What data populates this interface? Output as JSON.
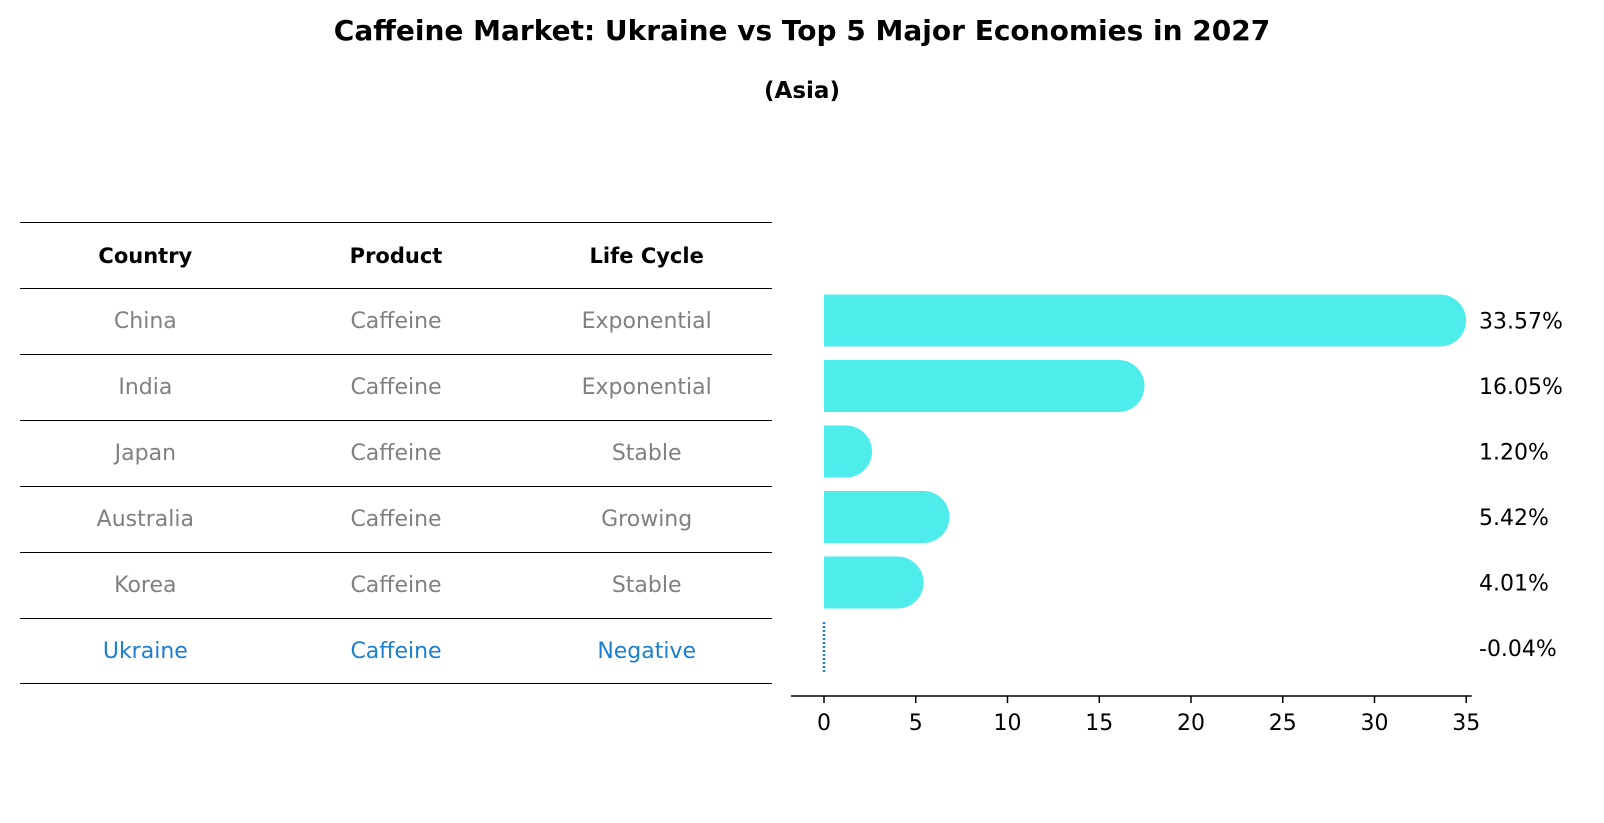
{
  "header": {
    "title": "Caffeine Market: Ukraine vs Top 5 Major Economies in 2027",
    "subtitle": "(Asia)"
  },
  "table": {
    "columns": [
      "Country",
      "Product",
      "Life Cycle"
    ],
    "rows": [
      {
        "country": "China",
        "product": "Caffeine",
        "life_cycle": "Exponential"
      },
      {
        "country": "India",
        "product": "Caffeine",
        "life_cycle": "Exponential"
      },
      {
        "country": "Japan",
        "product": "Caffeine",
        "life_cycle": "Stable"
      },
      {
        "country": "Australia",
        "product": "Caffeine",
        "life_cycle": "Growing"
      },
      {
        "country": "Korea",
        "product": "Caffeine",
        "life_cycle": "Stable"
      },
      {
        "country": "Ukraine",
        "product": "Caffeine",
        "life_cycle": "Negative"
      }
    ]
  },
  "chart_data": {
    "type": "bar",
    "orientation": "horizontal",
    "categories": [
      "China",
      "India",
      "Japan",
      "Australia",
      "Korea",
      "Ukraine"
    ],
    "values": [
      33.57,
      16.05,
      1.2,
      5.42,
      4.01,
      -0.04
    ],
    "value_labels": [
      "33.57%",
      "16.05%",
      "1.20%",
      "5.42%",
      "4.01%",
      "-0.04%"
    ],
    "xlim": [
      -1.8,
      35.3
    ],
    "xticks": [
      0,
      5,
      10,
      15,
      20,
      25,
      30,
      35
    ],
    "xlabel": "",
    "ylabel": "",
    "grid": false,
    "highlight_category": "Ukraine"
  },
  "colors": {
    "bar": "#4eecea",
    "highlight": "#1a7fd0",
    "muted_text": "#808080",
    "axis": "#000000"
  }
}
